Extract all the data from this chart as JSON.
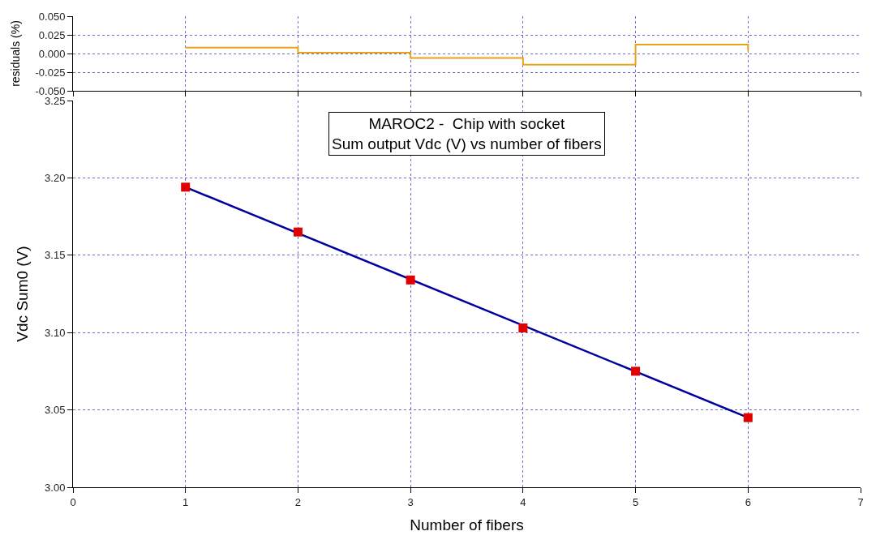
{
  "chart_data": [
    {
      "type": "step",
      "ylabel": "residuals (%)",
      "x": [
        1,
        2,
        3,
        4,
        5,
        6
      ],
      "xlim": [
        0,
        7
      ],
      "xticks": [
        0,
        1,
        2,
        3,
        4,
        5,
        6,
        7
      ],
      "ylim": [
        -0.05,
        0.05
      ],
      "yticks": [
        {
          "value": -0.05,
          "label": "-0.050"
        },
        {
          "value": -0.025,
          "label": "-0.025"
        },
        {
          "value": 0,
          "label": "0.000"
        },
        {
          "value": 0.025,
          "label": "0.025"
        },
        {
          "value": 0.05,
          "label": "0.050"
        }
      ],
      "tick_labels": "y",
      "grid": true,
      "series": [
        {
          "color": "#e8a317",
          "values": [
            0.008,
            0.001,
            -0.006,
            -0.015,
            0.012,
            0.003
          ]
        }
      ]
    },
    {
      "type": "scatter",
      "title": "MAROC2 -  Chip with socket",
      "subtitle": "Sum output Vdc (V) vs number of fibers",
      "xlabel": "Number of fibers",
      "ylabel": "Vdc Sum0 (V)",
      "x": [
        1,
        2,
        3,
        4,
        5,
        6
      ],
      "xlim": [
        0,
        7
      ],
      "xticks": [
        0,
        1,
        2,
        3,
        4,
        5,
        6,
        7
      ],
      "ylim": [
        3.0,
        3.25
      ],
      "yticks": [
        {
          "value": 3.0,
          "label": "3.00"
        },
        {
          "value": 3.05,
          "label": "3.05"
        },
        {
          "value": 3.1,
          "label": "3.10"
        },
        {
          "value": 3.15,
          "label": "3.15"
        },
        {
          "value": 3.2,
          "label": "3.20"
        },
        {
          "value": 3.25,
          "label": "3.25"
        }
      ],
      "grid": true,
      "series": [
        {
          "type": "line",
          "color": "#00009c",
          "x": [
            1,
            6
          ],
          "values": [
            3.194,
            3.045
          ]
        },
        {
          "type": "scatter",
          "marker": "square",
          "color": "#e00000",
          "values": [
            3.194,
            3.165,
            3.134,
            3.103,
            3.075,
            3.045
          ]
        }
      ]
    }
  ]
}
